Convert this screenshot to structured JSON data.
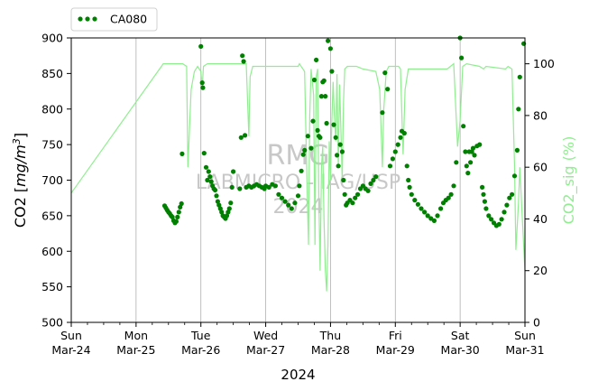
{
  "chart_data": {
    "type": "scatter",
    "title": "",
    "xlabel": "2024",
    "ylabel_html_parts": [
      "CO2 [",
      "mg/m",
      "3",
      "]"
    ],
    "y2label": "CO2_sig (%)",
    "ylim": [
      500,
      900
    ],
    "y2lim": [
      0,
      110
    ],
    "xlim": [
      0,
      7
    ],
    "yticks": [
      500,
      550,
      600,
      650,
      700,
      750,
      800,
      850,
      900
    ],
    "y2ticks": [
      0,
      20,
      40,
      60,
      80,
      100
    ],
    "xticks": [
      {
        "x": 0,
        "day": "Sun",
        "date": "Mar-24"
      },
      {
        "x": 1,
        "day": "Mon",
        "date": "Mar-25"
      },
      {
        "x": 2,
        "day": "Tue",
        "date": "Mar-26"
      },
      {
        "x": 3,
        "day": "Wed",
        "date": "Mar-27"
      },
      {
        "x": 4,
        "day": "Thu",
        "date": "Mar-28"
      },
      {
        "x": 5,
        "day": "Fri",
        "date": "Mar-29"
      },
      {
        "x": 6,
        "day": "Sat",
        "date": "Mar-30"
      },
      {
        "x": 7,
        "day": "Sun",
        "date": "Mar-31"
      }
    ],
    "grid": "vertical major",
    "legend": {
      "position": "top-left",
      "entries": [
        "CA080"
      ]
    },
    "watermark": [
      "RMG",
      "LABMICRO - IAG/USP",
      "2024"
    ],
    "colors": {
      "co2": "#008000",
      "sig": "#90ee90",
      "grid": "#b0b0b0",
      "watermark": "#c8c8c8"
    },
    "series": [
      {
        "name": "CA080",
        "axis": "left",
        "points": [
          [
            1.44,
            664
          ],
          [
            1.46,
            661
          ],
          [
            1.48,
            658
          ],
          [
            1.5,
            655
          ],
          [
            1.52,
            653
          ],
          [
            1.54,
            650
          ],
          [
            1.56,
            648
          ],
          [
            1.58,
            643
          ],
          [
            1.6,
            640
          ],
          [
            1.62,
            642
          ],
          [
            1.64,
            648
          ],
          [
            1.66,
            655
          ],
          [
            1.68,
            662
          ],
          [
            1.7,
            667
          ],
          [
            1.71,
            737
          ],
          [
            2.0,
            888
          ],
          [
            2.02,
            837
          ],
          [
            2.03,
            830
          ],
          [
            2.05,
            738
          ],
          [
            2.08,
            718
          ],
          [
            2.1,
            700
          ],
          [
            2.12,
            712
          ],
          [
            2.14,
            705
          ],
          [
            2.16,
            698
          ],
          [
            2.18,
            692
          ],
          [
            2.2,
            688
          ],
          [
            2.22,
            686
          ],
          [
            2.24,
            678
          ],
          [
            2.26,
            670
          ],
          [
            2.28,
            665
          ],
          [
            2.3,
            660
          ],
          [
            2.32,
            655
          ],
          [
            2.34,
            650
          ],
          [
            2.36,
            648
          ],
          [
            2.38,
            646
          ],
          [
            2.4,
            650
          ],
          [
            2.42,
            655
          ],
          [
            2.44,
            660
          ],
          [
            2.46,
            668
          ],
          [
            2.48,
            690
          ],
          [
            2.5,
            712
          ],
          [
            2.6,
            688
          ],
          [
            2.62,
            760
          ],
          [
            2.64,
            875
          ],
          [
            2.66,
            867
          ],
          [
            2.68,
            763
          ],
          [
            2.7,
            690
          ],
          [
            2.74,
            692
          ],
          [
            2.78,
            690
          ],
          [
            2.82,
            692
          ],
          [
            2.86,
            694
          ],
          [
            2.9,
            692
          ],
          [
            2.94,
            690
          ],
          [
            2.98,
            688
          ],
          [
            3.0,
            692
          ],
          [
            3.05,
            690
          ],
          [
            3.1,
            694
          ],
          [
            3.15,
            692
          ],
          [
            3.2,
            680
          ],
          [
            3.25,
            675
          ],
          [
            3.3,
            670
          ],
          [
            3.35,
            665
          ],
          [
            3.4,
            660
          ],
          [
            3.45,
            668
          ],
          [
            3.5,
            678
          ],
          [
            3.52,
            692
          ],
          [
            3.55,
            713
          ],
          [
            3.58,
            736
          ],
          [
            3.6,
            742
          ],
          [
            3.65,
            762
          ],
          [
            3.7,
            745
          ],
          [
            3.73,
            783
          ],
          [
            3.75,
            841
          ],
          [
            3.78,
            869
          ],
          [
            3.8,
            770
          ],
          [
            3.82,
            762
          ],
          [
            3.84,
            760
          ],
          [
            3.86,
            818
          ],
          [
            3.88,
            838
          ],
          [
            3.9,
            840
          ],
          [
            3.92,
            818
          ],
          [
            3.94,
            780
          ],
          [
            3.96,
            896
          ],
          [
            4.0,
            885
          ],
          [
            4.02,
            853
          ],
          [
            4.05,
            778
          ],
          [
            4.08,
            760
          ],
          [
            4.1,
            735
          ],
          [
            4.12,
            720
          ],
          [
            4.15,
            750
          ],
          [
            4.18,
            740
          ],
          [
            4.2,
            700
          ],
          [
            4.22,
            680
          ],
          [
            4.24,
            665
          ],
          [
            4.26,
            668
          ],
          [
            4.3,
            672
          ],
          [
            4.34,
            668
          ],
          [
            4.38,
            675
          ],
          [
            4.42,
            680
          ],
          [
            4.46,
            688
          ],
          [
            4.5,
            692
          ],
          [
            4.54,
            688
          ],
          [
            4.58,
            685
          ],
          [
            4.62,
            695
          ],
          [
            4.66,
            700
          ],
          [
            4.7,
            705
          ],
          [
            4.8,
            795
          ],
          [
            4.84,
            851
          ],
          [
            4.88,
            828
          ],
          [
            4.92,
            720
          ],
          [
            4.96,
            730
          ],
          [
            5.0,
            740
          ],
          [
            5.04,
            750
          ],
          [
            5.08,
            760
          ],
          [
            5.1,
            769
          ],
          [
            5.14,
            766
          ],
          [
            5.18,
            720
          ],
          [
            5.2,
            700
          ],
          [
            5.22,
            690
          ],
          [
            5.25,
            680
          ],
          [
            5.3,
            672
          ],
          [
            5.35,
            666
          ],
          [
            5.4,
            660
          ],
          [
            5.45,
            655
          ],
          [
            5.5,
            650
          ],
          [
            5.55,
            646
          ],
          [
            5.6,
            643
          ],
          [
            5.65,
            650
          ],
          [
            5.7,
            660
          ],
          [
            5.74,
            668
          ],
          [
            5.78,
            672
          ],
          [
            5.82,
            675
          ],
          [
            5.86,
            680
          ],
          [
            5.9,
            692
          ],
          [
            5.94,
            725
          ],
          [
            6.0,
            900
          ],
          [
            6.02,
            872
          ],
          [
            6.05,
            776
          ],
          [
            6.08,
            740
          ],
          [
            6.1,
            720
          ],
          [
            6.12,
            710
          ],
          [
            6.14,
            740
          ],
          [
            6.16,
            725
          ],
          [
            6.18,
            740
          ],
          [
            6.2,
            745
          ],
          [
            6.22,
            735
          ],
          [
            6.26,
            748
          ],
          [
            6.3,
            750
          ],
          [
            6.34,
            690
          ],
          [
            6.36,
            680
          ],
          [
            6.38,
            670
          ],
          [
            6.4,
            660
          ],
          [
            6.44,
            650
          ],
          [
            6.48,
            645
          ],
          [
            6.52,
            640
          ],
          [
            6.56,
            636
          ],
          [
            6.6,
            638
          ],
          [
            6.64,
            645
          ],
          [
            6.68,
            655
          ],
          [
            6.72,
            665
          ],
          [
            6.76,
            675
          ],
          [
            6.8,
            680
          ],
          [
            6.84,
            706
          ],
          [
            6.88,
            742
          ],
          [
            6.9,
            800
          ],
          [
            6.92,
            845
          ],
          [
            6.98,
            892
          ]
        ]
      },
      {
        "name": "",
        "axis": "right",
        "line": [
          [
            0,
            50
          ],
          [
            1.42,
            100
          ],
          [
            1.72,
            100
          ],
          [
            1.78,
            99
          ],
          [
            1.8,
            60
          ],
          [
            1.85,
            90
          ],
          [
            1.9,
            97
          ],
          [
            1.95,
            99
          ],
          [
            2.0,
            97
          ],
          [
            2.02,
            91
          ],
          [
            2.04,
            99
          ],
          [
            2.1,
            100
          ],
          [
            2.5,
            100
          ],
          [
            2.7,
            100
          ],
          [
            2.74,
            72
          ],
          [
            2.76,
            95
          ],
          [
            2.8,
            99
          ],
          [
            3.5,
            99
          ],
          [
            3.52,
            100
          ],
          [
            3.6,
            97
          ],
          [
            3.64,
            50
          ],
          [
            3.66,
            30
          ],
          [
            3.68,
            80
          ],
          [
            3.7,
            98
          ],
          [
            3.74,
            88
          ],
          [
            3.76,
            30
          ],
          [
            3.78,
            95
          ],
          [
            3.8,
            98
          ],
          [
            3.82,
            48
          ],
          [
            3.84,
            20
          ],
          [
            3.86,
            60
          ],
          [
            3.88,
            68
          ],
          [
            3.9,
            40
          ],
          [
            3.92,
            20
          ],
          [
            3.94,
            12
          ],
          [
            3.96,
            30
          ],
          [
            3.98,
            70
          ],
          [
            4.0,
            55
          ],
          [
            4.02,
            78
          ],
          [
            4.04,
            93
          ],
          [
            4.06,
            80
          ],
          [
            4.08,
            70
          ],
          [
            4.1,
            96
          ],
          [
            4.12,
            60
          ],
          [
            4.14,
            92
          ],
          [
            4.16,
            75
          ],
          [
            4.18,
            55
          ],
          [
            4.2,
            85
          ],
          [
            4.22,
            98
          ],
          [
            4.26,
            99
          ],
          [
            4.4,
            99
          ],
          [
            4.5,
            98
          ],
          [
            4.7,
            97
          ],
          [
            4.76,
            90
          ],
          [
            4.8,
            60
          ],
          [
            4.82,
            82
          ],
          [
            4.86,
            97
          ],
          [
            4.9,
            99
          ],
          [
            5.05,
            99
          ],
          [
            5.08,
            98
          ],
          [
            5.12,
            65
          ],
          [
            5.15,
            90
          ],
          [
            5.2,
            98
          ],
          [
            5.5,
            98
          ],
          [
            5.8,
            98
          ],
          [
            5.85,
            99
          ],
          [
            5.9,
            100
          ],
          [
            5.96,
            68
          ],
          [
            6.0,
            78
          ],
          [
            6.04,
            99
          ],
          [
            6.1,
            100
          ],
          [
            6.3,
            99
          ],
          [
            6.36,
            98
          ],
          [
            6.4,
            99
          ],
          [
            6.7,
            98
          ],
          [
            6.74,
            99
          ],
          [
            6.8,
            98
          ],
          [
            6.84,
            60
          ],
          [
            6.86,
            28
          ],
          [
            6.9,
            46
          ],
          [
            6.92,
            60
          ],
          [
            6.96,
            40
          ],
          [
            7.0,
            20
          ]
        ]
      }
    ]
  }
}
